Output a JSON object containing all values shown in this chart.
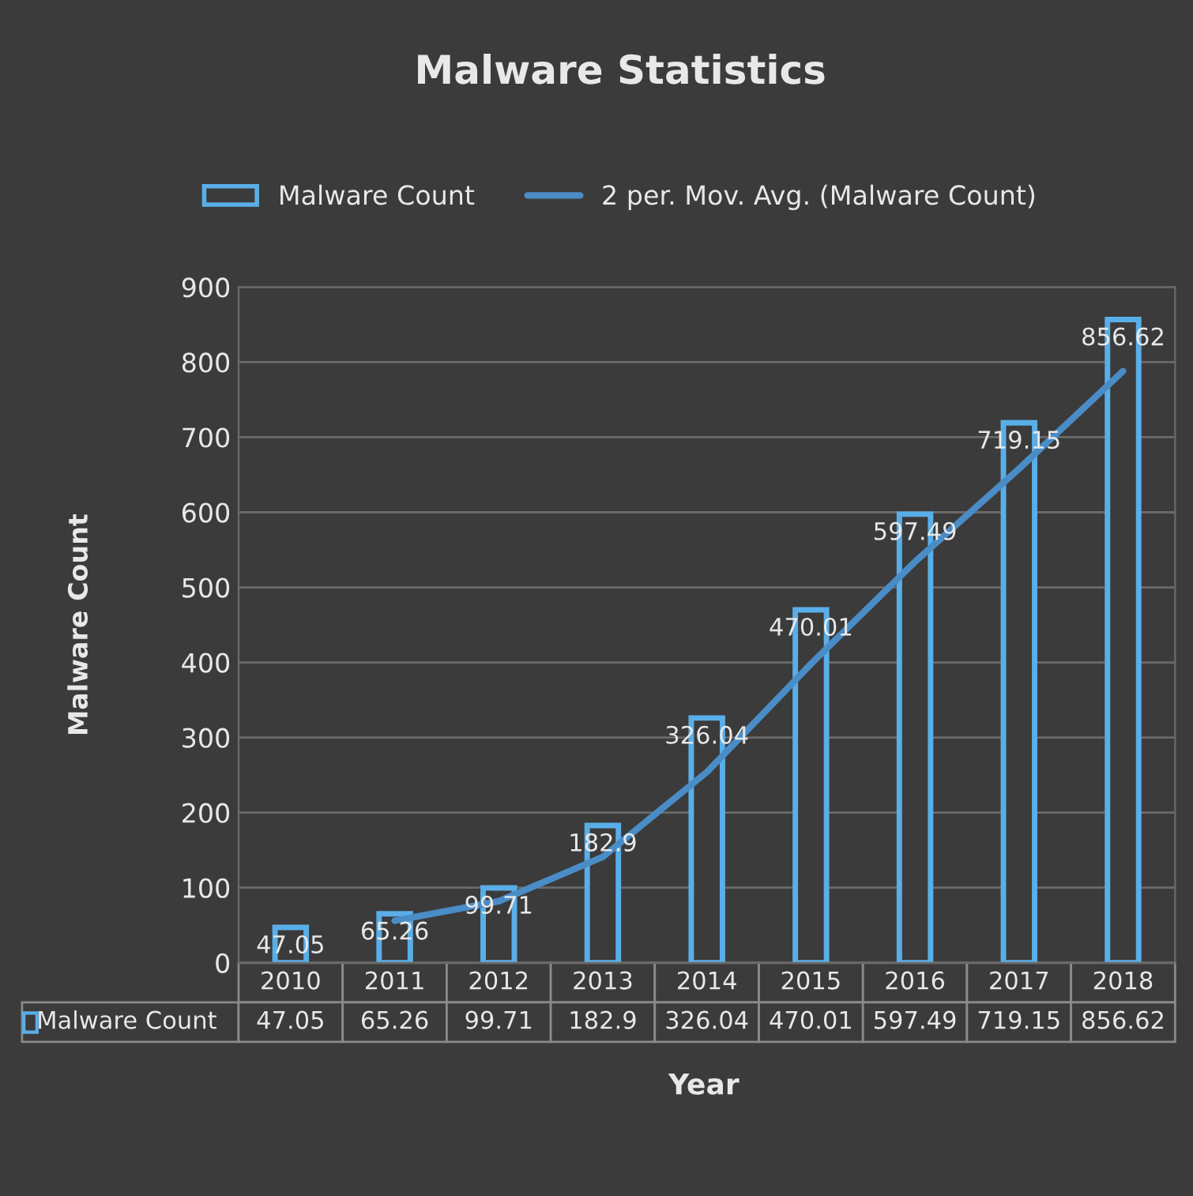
{
  "chart_data": {
    "type": "bar",
    "title": "Malware Statistics",
    "xlabel": "Year",
    "ylabel": "Malware Count",
    "categories": [
      "2010",
      "2011",
      "2012",
      "2013",
      "2014",
      "2015",
      "2016",
      "2017",
      "2018"
    ],
    "series": [
      {
        "name": "Malware Count",
        "color": "#5aaee8",
        "values": [
          47.05,
          65.26,
          99.71,
          182.9,
          326.04,
          470.01,
          597.49,
          719.15,
          856.62
        ],
        "value_labels": [
          "47.05",
          "65.26",
          "99.71",
          "182.9",
          "326.04",
          "470.01",
          "597.49",
          "719.15",
          "856.62"
        ]
      },
      {
        "name": "2 per. Mov. Avg. (Malware Count)",
        "type": "line",
        "color": "#4a8cc6",
        "values": [
          null,
          56,
          82,
          141,
          254,
          398,
          534,
          658,
          788
        ]
      }
    ],
    "ylim": [
      0,
      900
    ],
    "yticks": [
      0,
      100,
      200,
      300,
      400,
      500,
      600,
      700,
      800,
      900
    ],
    "grid": "y",
    "legend": "top",
    "marker": "none",
    "line_style": "solid"
  }
}
